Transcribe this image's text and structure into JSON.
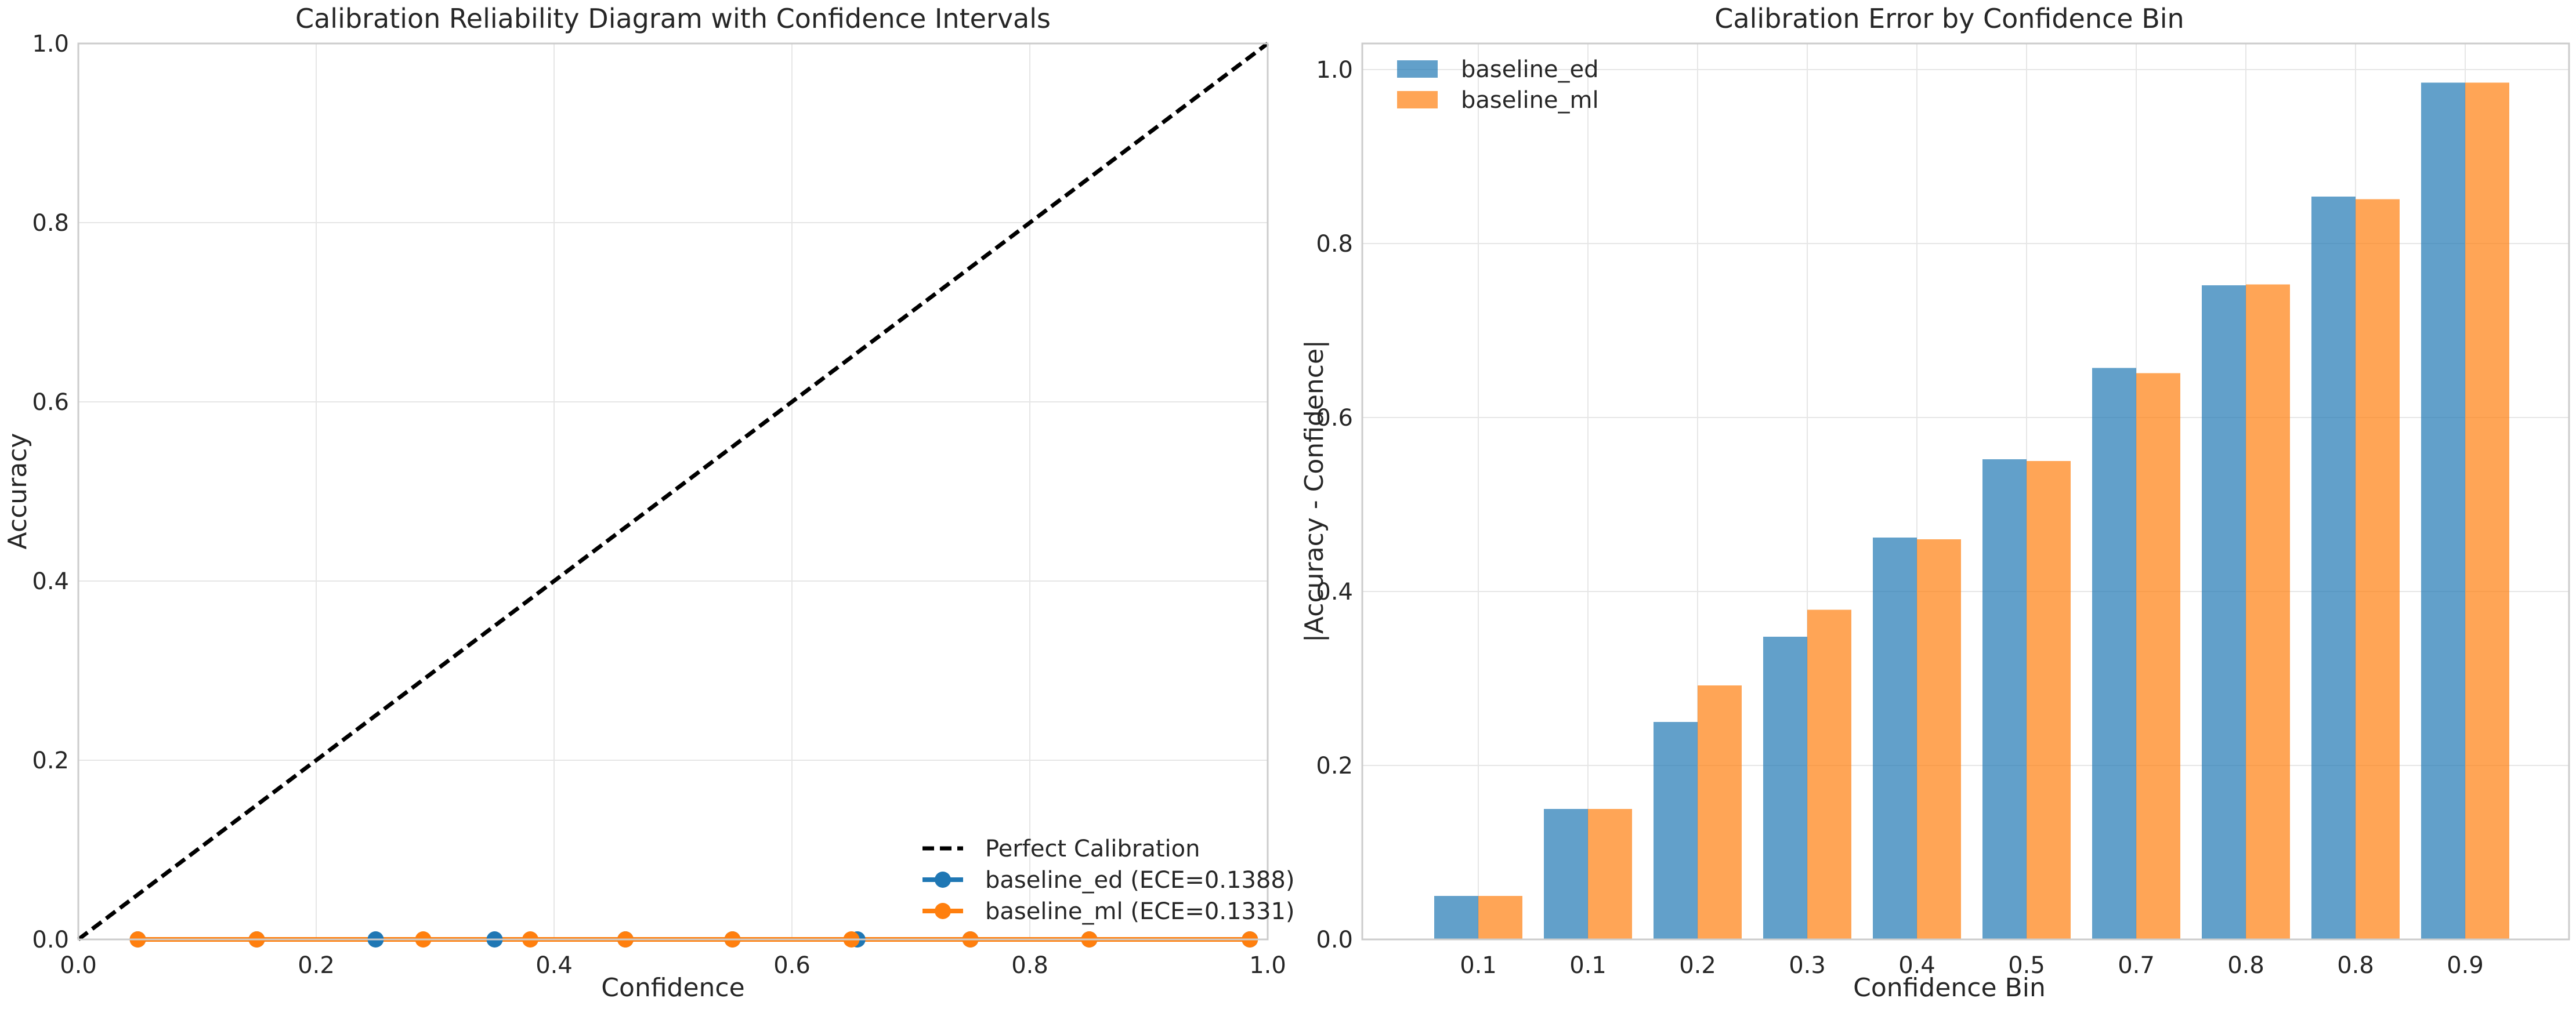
{
  "chart_data": [
    {
      "type": "line",
      "title": "Calibration Reliability Diagram with Confidence Intervals",
      "xlabel": "Confidence",
      "ylabel": "Accuracy",
      "xlim": [
        0,
        1
      ],
      "ylim": [
        0,
        1
      ],
      "xticks": [
        "0.0",
        "0.2",
        "0.4",
        "0.6",
        "0.8",
        "1.0"
      ],
      "yticks": [
        "0.0",
        "0.2",
        "0.4",
        "0.6",
        "0.8",
        "1.0"
      ],
      "grid": true,
      "legend_position": "lower-right",
      "reference_line": {
        "name": "Perfect Calibration",
        "x": [
          0,
          1
        ],
        "y": [
          0,
          1
        ],
        "color": "#000000",
        "style": "dashed"
      },
      "series": [
        {
          "name": "baseline_ed (ECE=0.1388)",
          "color": "#1f77b4",
          "x": [
            0.05,
            0.15,
            0.25,
            0.35,
            0.46,
            0.55,
            0.655,
            0.75,
            0.85,
            0.985
          ],
          "y": [
            0,
            0,
            0,
            0,
            0,
            0,
            0,
            0,
            0,
            0
          ]
        },
        {
          "name": "baseline_ml (ECE=0.1331)",
          "color": "#ff7f0e",
          "x": [
            0.05,
            0.15,
            0.29,
            0.38,
            0.46,
            0.55,
            0.65,
            0.75,
            0.85,
            0.985
          ],
          "y": [
            0,
            0,
            0,
            0,
            0,
            0,
            0,
            0,
            0,
            0
          ]
        }
      ]
    },
    {
      "type": "bar",
      "title": "Calibration Error by Confidence Bin",
      "xlabel": "Confidence Bin",
      "ylabel": "|Accuracy - Confidence|",
      "categories": [
        "0.1",
        "0.1",
        "0.2",
        "0.3",
        "0.4",
        "0.5",
        "0.7",
        "0.8",
        "0.8",
        "0.9"
      ],
      "ylim": [
        0,
        1.03
      ],
      "yticks": [
        "0.0",
        "0.2",
        "0.4",
        "0.6",
        "0.8",
        "1.0"
      ],
      "grid": true,
      "legend_position": "top-left",
      "series": [
        {
          "name": "baseline_ed",
          "color": "#1f77b4",
          "values": [
            0.05,
            0.15,
            0.25,
            0.348,
            0.462,
            0.552,
            0.657,
            0.752,
            0.854,
            0.985
          ]
        },
        {
          "name": "baseline_ml",
          "color": "#ff7f0e",
          "values": [
            0.05,
            0.15,
            0.292,
            0.379,
            0.46,
            0.55,
            0.651,
            0.753,
            0.851,
            0.985
          ]
        }
      ]
    }
  ]
}
